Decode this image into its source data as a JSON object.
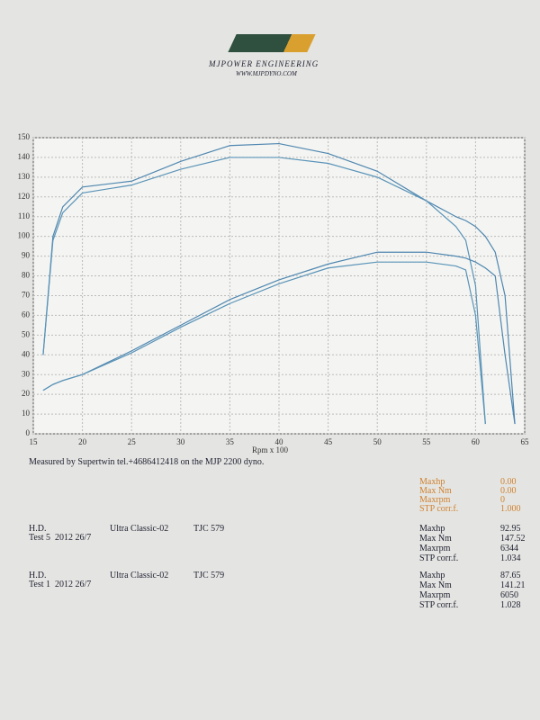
{
  "header": {
    "brand": "MJPOWER ENGINEERING",
    "url": "WWW.MJPDYNO.COM"
  },
  "chart_data": {
    "type": "line",
    "xlabel": "Rpm x 100",
    "x": [
      16,
      17,
      18,
      20,
      25,
      30,
      35,
      40,
      45,
      50,
      55,
      58,
      59,
      60,
      61,
      62,
      63,
      64
    ],
    "series": [
      {
        "color": "#4f86b0",
        "values": [
          40,
          100,
          115,
          125,
          128,
          138,
          146,
          147,
          142,
          133,
          118,
          110,
          108,
          105,
          100,
          92,
          70,
          5
        ]
      },
      {
        "color": "#5a93b8",
        "values": [
          40,
          98,
          112,
          122,
          126,
          134,
          140,
          140,
          137,
          130,
          118,
          105,
          98,
          75,
          5,
          null,
          null,
          null
        ]
      },
      {
        "color": "#4f86b0",
        "values": [
          22,
          25,
          27,
          30,
          42,
          55,
          68,
          78,
          86,
          92,
          92,
          90,
          89,
          87,
          84,
          80,
          40,
          5
        ]
      },
      {
        "color": "#5a93b8",
        "values": [
          22,
          25,
          27,
          30,
          41,
          54,
          66,
          76,
          84,
          87,
          87,
          85,
          83,
          60,
          5,
          null,
          null,
          null
        ]
      }
    ],
    "xlim": [
      15,
      65
    ],
    "xticks": [
      15,
      20,
      25,
      30,
      35,
      40,
      45,
      50,
      55,
      60,
      65
    ],
    "ylim": [
      0,
      150
    ],
    "yticks": [
      0,
      10,
      20,
      30,
      40,
      50,
      60,
      70,
      80,
      90,
      100,
      110,
      120,
      130,
      140,
      150
    ],
    "grid": true
  },
  "note": "Measured by Supertwin tel.+4686412418 on the MJP 2200 dyno.",
  "summary": {
    "labels": [
      "Maxhp",
      "Max Nm",
      "Maxrpm",
      "STP corr.f."
    ],
    "values": [
      "0.00",
      "0.00",
      "0",
      "1.000"
    ]
  },
  "runs": [
    {
      "make": "H.D.",
      "test": "Test 5  2012 26/7",
      "model": "Ultra Classic-02",
      "plate": "TJC 579",
      "labels": [
        "Maxhp",
        "Max Nm",
        "Maxrpm",
        "STP corr.f."
      ],
      "values": [
        "92.95",
        "147.52",
        "6344",
        "1.034"
      ]
    },
    {
      "make": "H.D.",
      "test": "Test 1  2012 26/7",
      "model": "Ultra Classic-02",
      "plate": "TJC 579",
      "labels": [
        "Maxhp",
        "Max Nm",
        "Maxrpm",
        "STP corr.f."
      ],
      "values": [
        "87.65",
        "141.21",
        "6050",
        "1.028"
      ]
    }
  ]
}
